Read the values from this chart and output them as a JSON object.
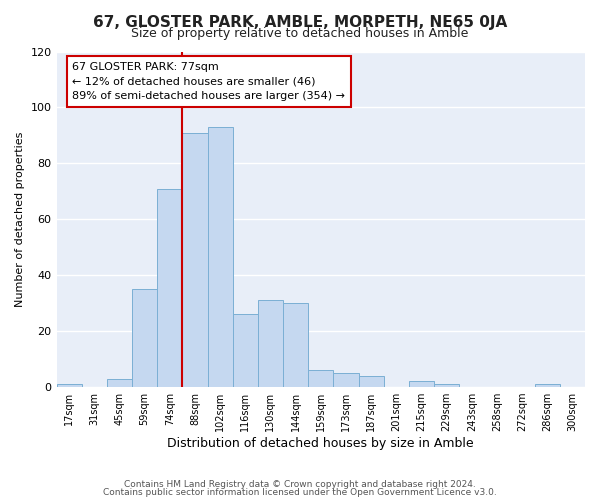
{
  "title": "67, GLOSTER PARK, AMBLE, MORPETH, NE65 0JA",
  "subtitle": "Size of property relative to detached houses in Amble",
  "xlabel": "Distribution of detached houses by size in Amble",
  "ylabel": "Number of detached properties",
  "bar_labels": [
    "17sqm",
    "31sqm",
    "45sqm",
    "59sqm",
    "74sqm",
    "88sqm",
    "102sqm",
    "116sqm",
    "130sqm",
    "144sqm",
    "159sqm",
    "173sqm",
    "187sqm",
    "201sqm",
    "215sqm",
    "229sqm",
    "243sqm",
    "258sqm",
    "272sqm",
    "286sqm",
    "300sqm"
  ],
  "bar_values": [
    1,
    0,
    3,
    35,
    71,
    91,
    93,
    26,
    31,
    30,
    6,
    5,
    4,
    0,
    2,
    1,
    0,
    0,
    0,
    1,
    0
  ],
  "bar_color": "#c5d8f0",
  "bar_edge_color": "#7bafd4",
  "bg_color": "#ffffff",
  "plot_bg_color": "#e8eef8",
  "grid_color": "#ffffff",
  "vline_x": 4.5,
  "vline_color": "#cc0000",
  "annotation_text": "67 GLOSTER PARK: 77sqm\n← 12% of detached houses are smaller (46)\n89% of semi-detached houses are larger (354) →",
  "annotation_box_color": "#cc0000",
  "ylim": [
    0,
    120
  ],
  "footer1": "Contains HM Land Registry data © Crown copyright and database right 2024.",
  "footer2": "Contains public sector information licensed under the Open Government Licence v3.0."
}
